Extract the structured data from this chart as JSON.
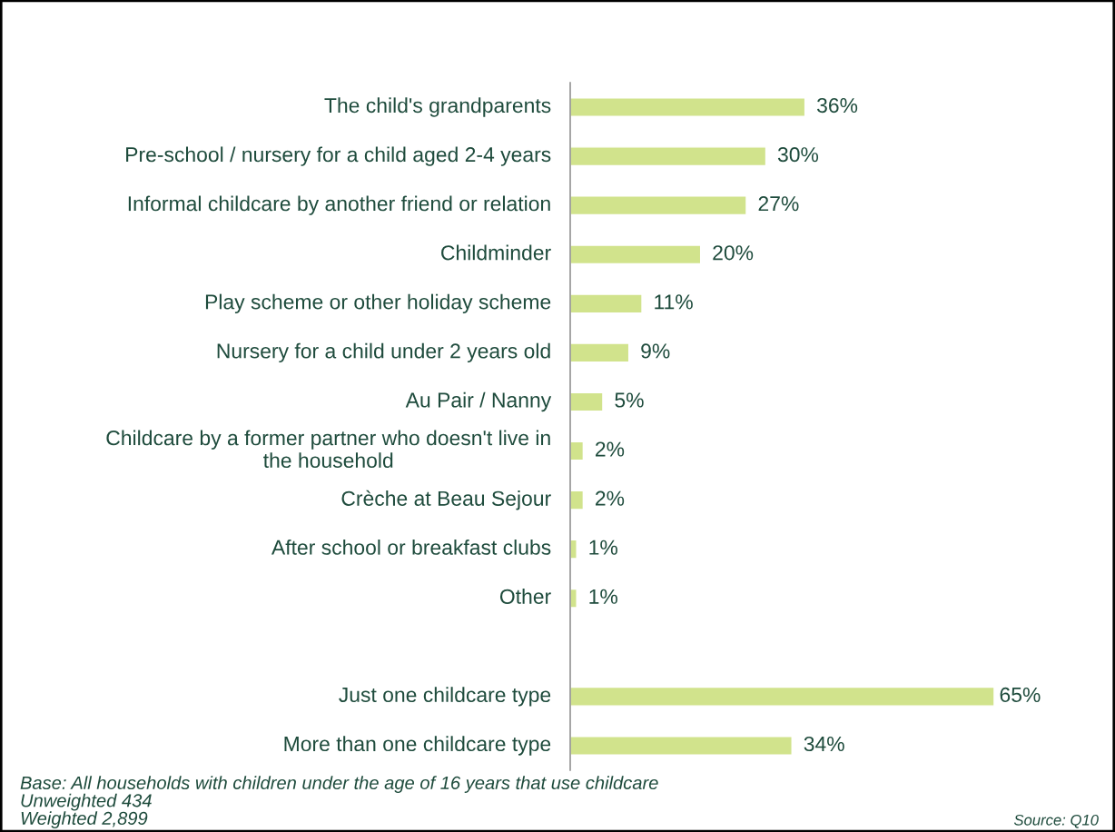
{
  "chart_data": {
    "type": "bar",
    "orientation": "horizontal",
    "categories": [
      "The child's grandparents",
      "Pre-school / nursery for a child aged 2-4 years",
      "Informal childcare by another friend or relation",
      "Childminder",
      "Play scheme or other holiday scheme",
      "Nursery for a child under 2 years old",
      "Au Pair / Nanny",
      "Childcare by a former partner who doesn't live in the household",
      "Crèche at Beau Sejour",
      "After school or breakfast clubs",
      "Other",
      null,
      "Just one childcare type",
      "More than one childcare type"
    ],
    "values": [
      36,
      30,
      27,
      20,
      11,
      9,
      5,
      2,
      2,
      1,
      1,
      null,
      65,
      34
    ],
    "value_labels": [
      "36%",
      "30%",
      "27%",
      "20%",
      "11%",
      "9%",
      "5%",
      "2%",
      "2%",
      "1%",
      "1%",
      null,
      "65%",
      "34%"
    ],
    "color": "#d1e38c",
    "grid": false,
    "annotations": [
      "Base: All households with children under the age of 16 years that use childcare\nUnweighted 434\nWeighted 2,899",
      "Source: Q10"
    ]
  }
}
